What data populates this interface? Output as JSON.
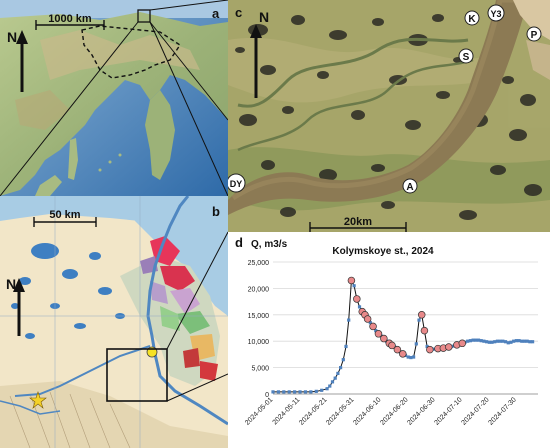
{
  "panels": {
    "a": {
      "label": "a",
      "scale": "1000 km",
      "north": "N"
    },
    "b": {
      "label": "b",
      "scale": "50 km",
      "north": "N"
    },
    "c": {
      "label": "c",
      "scale": "20km",
      "north": "N",
      "sites": {
        "K": "K",
        "Y3": "Y3",
        "P": "P",
        "S": "S",
        "A": "A",
        "DY": "DY"
      }
    },
    "d": {
      "label": "d"
    }
  },
  "chart_data": {
    "type": "line",
    "title": "Kolymskoye st., 2024",
    "ylabel": "Q, m3/s",
    "xlabel": "",
    "ylim": [
      0,
      25000
    ],
    "yticks": [
      "0",
      "5,000",
      "10,000",
      "15,000",
      "20,000",
      "25,000"
    ],
    "xticks": [
      "2024-05-01",
      "2024-05-11",
      "2024-05-21",
      "2024-05-31",
      "2024-06-10",
      "2024-06-20",
      "2024-06-30",
      "2024-07-10",
      "2024-07-20",
      "2024-07-30"
    ],
    "xrange": [
      "2024-05-01",
      "2024-08-07"
    ],
    "grid": "horizontal",
    "series": [
      {
        "style": "line-markers",
        "color": "#4f81bd",
        "x": [
          "2024-05-01",
          "2024-05-03",
          "2024-05-05",
          "2024-05-07",
          "2024-05-09",
          "2024-05-11",
          "2024-05-13",
          "2024-05-15",
          "2024-05-17",
          "2024-05-19",
          "2024-05-21",
          "2024-05-22",
          "2024-05-23",
          "2024-05-24",
          "2024-05-25",
          "2024-05-26",
          "2024-05-27",
          "2024-05-28",
          "2024-05-29",
          "2024-05-30",
          "2024-05-31",
          "2024-06-01",
          "2024-06-02",
          "2024-06-03",
          "2024-06-04",
          "2024-06-05",
          "2024-06-06",
          "2024-06-07",
          "2024-06-08",
          "2024-06-09",
          "2024-06-10",
          "2024-06-11",
          "2024-06-12",
          "2024-06-13",
          "2024-06-14",
          "2024-06-15",
          "2024-06-16",
          "2024-06-17",
          "2024-06-18",
          "2024-06-19",
          "2024-06-20",
          "2024-06-21",
          "2024-06-22",
          "2024-06-23",
          "2024-06-24",
          "2024-06-25",
          "2024-06-26",
          "2024-06-27",
          "2024-06-28",
          "2024-06-29",
          "2024-06-30",
          "2024-07-01",
          "2024-07-02",
          "2024-07-03",
          "2024-07-04",
          "2024-07-05",
          "2024-07-06",
          "2024-07-07",
          "2024-07-08",
          "2024-07-09",
          "2024-07-10",
          "2024-07-11",
          "2024-07-12",
          "2024-07-13",
          "2024-07-14",
          "2024-07-15",
          "2024-07-16",
          "2024-07-17",
          "2024-07-18",
          "2024-07-19",
          "2024-07-20",
          "2024-07-21",
          "2024-07-22",
          "2024-07-23",
          "2024-07-24",
          "2024-07-25",
          "2024-07-26",
          "2024-07-27",
          "2024-07-28",
          "2024-07-29",
          "2024-07-30",
          "2024-07-31",
          "2024-08-01",
          "2024-08-02",
          "2024-08-03",
          "2024-08-04",
          "2024-08-05"
        ],
        "y": [
          400,
          400,
          400,
          400,
          400,
          400,
          400,
          400,
          500,
          700,
          1000,
          1500,
          2300,
          3000,
          3900,
          5000,
          6500,
          9000,
          14000,
          21500,
          20500,
          18000,
          16500,
          15600,
          15000,
          14200,
          13500,
          12800,
          12000,
          11400,
          11000,
          10500,
          10000,
          9600,
          9200,
          8900,
          8400,
          8000,
          7600,
          7300,
          7000,
          6900,
          7000,
          9500,
          14000,
          15000,
          12000,
          9000,
          8400,
          8500,
          8500,
          8600,
          8600,
          8700,
          8800,
          8900,
          9000,
          9100,
          9300,
          9400,
          9600,
          9800,
          10000,
          10100,
          10200,
          10200,
          10200,
          10100,
          10000,
          9900,
          9800,
          9800,
          9900,
          10000,
          10000,
          10000,
          9900,
          9700,
          9800,
          10000,
          10100,
          10100,
          10000,
          10000,
          10000,
          9900,
          9900
        ]
      },
      {
        "style": "highlighted-markers",
        "color": "#e8898a",
        "x": [
          "2024-05-30",
          "2024-06-01",
          "2024-06-03",
          "2024-06-04",
          "2024-06-05",
          "2024-06-07",
          "2024-06-09",
          "2024-06-11",
          "2024-06-13",
          "2024-06-14",
          "2024-06-16",
          "2024-06-18",
          "2024-06-25",
          "2024-06-26",
          "2024-06-28",
          "2024-07-01",
          "2024-07-03",
          "2024-07-05",
          "2024-07-08",
          "2024-07-10"
        ],
        "y": [
          21500,
          18000,
          15600,
          15000,
          14200,
          12800,
          11400,
          10500,
          9600,
          9200,
          8400,
          7600,
          15000,
          12000,
          8400,
          8600,
          8700,
          8900,
          9300,
          9600
        ]
      }
    ]
  }
}
